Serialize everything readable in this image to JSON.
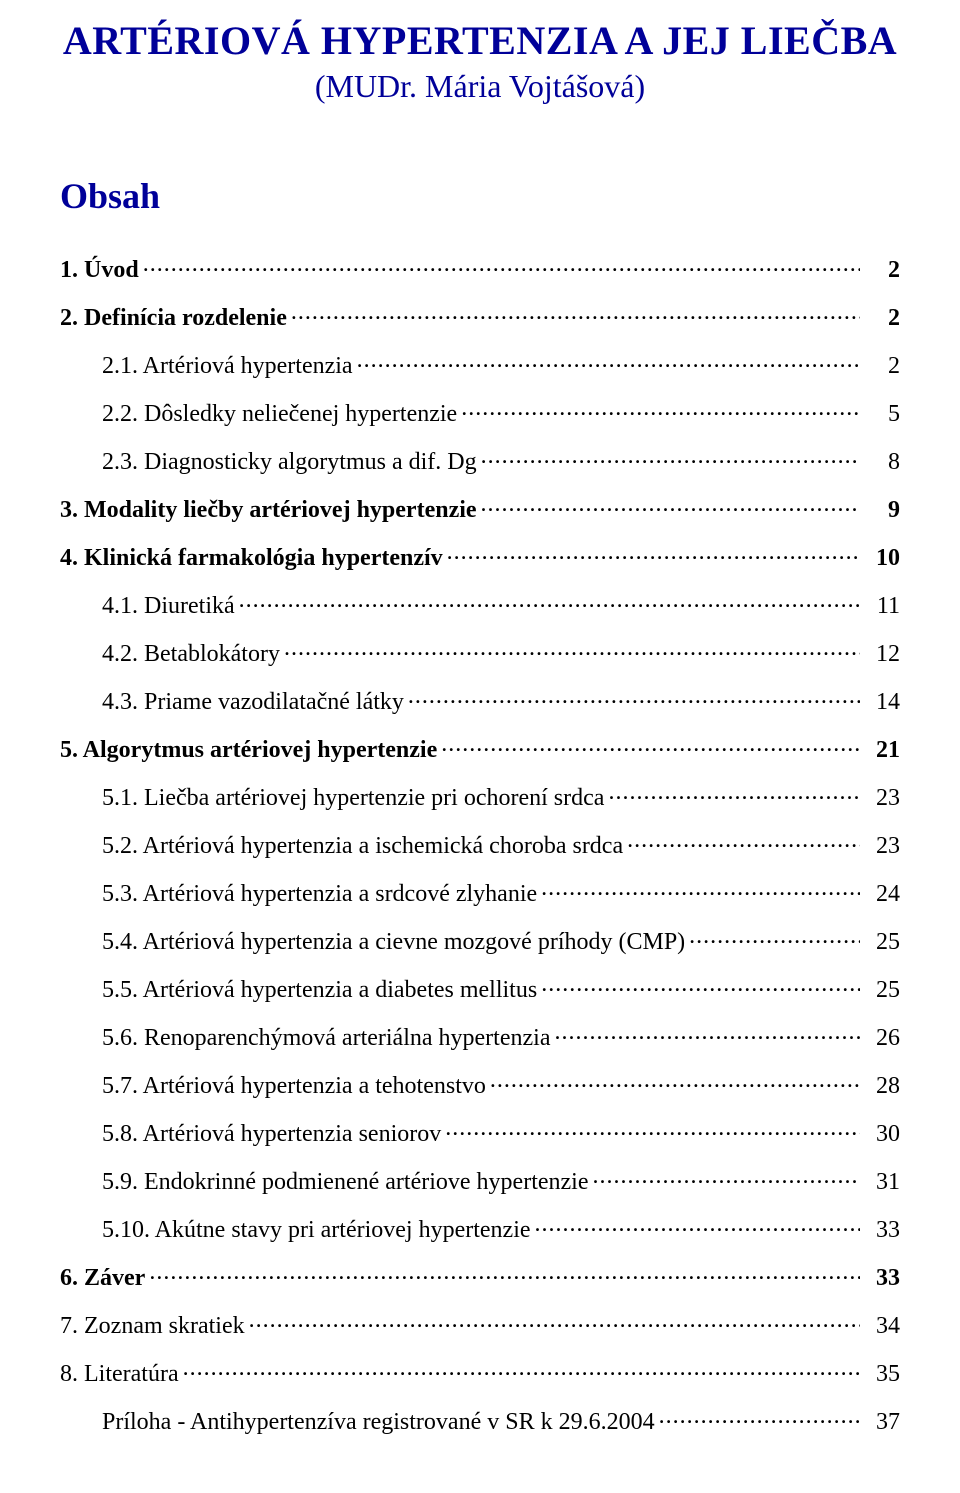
{
  "colors": {
    "heading": "#000099",
    "text": "#000000",
    "background": "#ffffff"
  },
  "typography": {
    "family": "Times New Roman",
    "title_fontsize_pt": 30,
    "subtitle_fontsize_pt": 24,
    "obsah_fontsize_pt": 27,
    "body_fontsize_pt": 18
  },
  "title": "ARTÉRIOVÁ HYPERTENZIA A JEJ LIEČBA",
  "subtitle": "(MUDr. Mária Vojtášová)",
  "obsah_label": "Obsah",
  "toc": [
    {
      "label": "1. Úvod",
      "page": "2",
      "indent": 0,
      "bold": true
    },
    {
      "label": "2. Definícia rozdelenie",
      "page": "2",
      "indent": 0,
      "bold": true
    },
    {
      "label": "2.1. Artériová hypertenzia",
      "page": "2",
      "indent": 1,
      "bold": false
    },
    {
      "label": "2.2. Dôsledky neliečenej hypertenzie",
      "page": "5",
      "indent": 1,
      "bold": false
    },
    {
      "label": "2.3. Diagnosticky algorytmus a dif. Dg",
      "page": "8",
      "indent": 1,
      "bold": false
    },
    {
      "label": "3. Modality liečby artériovej hypertenzie",
      "page": "9",
      "indent": 0,
      "bold": true
    },
    {
      "label": "4. Klinická farmakológia hypertenzív",
      "page": "10",
      "indent": 0,
      "bold": true
    },
    {
      "label": "4.1. Diuretiká",
      "page": "11",
      "indent": 1,
      "bold": false
    },
    {
      "label": "4.2. Betablokátory",
      "page": "12",
      "indent": 1,
      "bold": false
    },
    {
      "label": "4.3. Priame vazodilatačné látky",
      "page": "14",
      "indent": 1,
      "bold": false
    },
    {
      "label": "5. Algorytmus artériovej hypertenzie",
      "page": "21",
      "indent": 0,
      "bold": true
    },
    {
      "label": "5.1. Liečba artériovej hypertenzie pri ochorení srdca",
      "page": "23",
      "indent": 1,
      "bold": false
    },
    {
      "label": "5.2. Artériová hypertenzia a ischemická choroba srdca",
      "page": "23",
      "indent": 1,
      "bold": false
    },
    {
      "label": "5.3. Artériová hypertenzia a srdcové zlyhanie",
      "page": "24",
      "indent": 1,
      "bold": false
    },
    {
      "label": "5.4. Artériová hypertenzia a cievne mozgové príhody (CMP)",
      "page": "25",
      "indent": 1,
      "bold": false
    },
    {
      "label": "5.5. Artériová hypertenzia a diabetes mellitus",
      "page": "25",
      "indent": 1,
      "bold": false
    },
    {
      "label": "5.6. Renoparenchýmová arteriálna hypertenzia",
      "page": "26",
      "indent": 1,
      "bold": false
    },
    {
      "label": "5.7. Artériová hypertenzia a tehotenstvo",
      "page": "28",
      "indent": 1,
      "bold": false
    },
    {
      "label": "5.8. Artériová hypertenzia seniorov",
      "page": "30",
      "indent": 1,
      "bold": false
    },
    {
      "label": "5.9. Endokrinné podmienené artériove hypertenzie",
      "page": "31",
      "indent": 1,
      "bold": false
    },
    {
      "label": "5.10. Akútne stavy pri artériovej hypertenzie",
      "page": "33",
      "indent": 1,
      "bold": false
    },
    {
      "label": "6. Záver",
      "page": "33",
      "indent": 0,
      "bold": true
    },
    {
      "label": "7. Zoznam skratiek",
      "page": "34",
      "indent": 0,
      "bold": false
    },
    {
      "label": "8. Literatúra",
      "page": "35",
      "indent": 0,
      "bold": false
    },
    {
      "label": "Príloha - Antihypertenzíva registrované v SR k 29.6.2004",
      "page": "37",
      "indent": 1,
      "bold": false
    }
  ]
}
